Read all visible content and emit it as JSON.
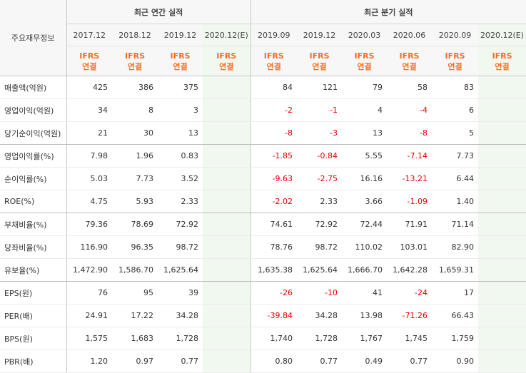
{
  "header": {
    "corner_label": "주요재무정보",
    "annual_group": "최근 연간 실적",
    "quarter_group": "최근 분기 실적",
    "annual_periods": [
      "2017.12",
      "2018.12",
      "2019.12",
      "2020.12(E)"
    ],
    "quarter_periods": [
      "2019.09",
      "2019.12",
      "2020.03",
      "2020.06",
      "2020.09",
      "2020.12(E)"
    ],
    "ifrs_line1": "IFRS",
    "ifrs_line2": "연결"
  },
  "colors": {
    "negative": "#e60000",
    "ifrs": "#ff6a22",
    "estimate_bg": "#f1f8ef"
  },
  "rows": [
    {
      "label": "매출액(억원)",
      "annual": [
        "425",
        "386",
        "375",
        ""
      ],
      "quarter": [
        "84",
        "121",
        "79",
        "58",
        "83",
        ""
      ]
    },
    {
      "label": "영업이익(억원)",
      "annual": [
        "34",
        "8",
        "3",
        ""
      ],
      "quarter": [
        "-2",
        "-1",
        "4",
        "-4",
        "6",
        ""
      ]
    },
    {
      "label": "당기순이익(억원)",
      "annual": [
        "21",
        "30",
        "13",
        ""
      ],
      "quarter": [
        "-8",
        "-3",
        "13",
        "-8",
        "5",
        ""
      ]
    },
    {
      "label": "영업이익률(%)",
      "annual": [
        "7.98",
        "1.96",
        "0.83",
        ""
      ],
      "quarter": [
        "-1.85",
        "-0.84",
        "5.55",
        "-7.14",
        "7.73",
        ""
      ]
    },
    {
      "label": "순이익률(%)",
      "annual": [
        "5.03",
        "7.73",
        "3.52",
        ""
      ],
      "quarter": [
        "-9.63",
        "-2.75",
        "16.16",
        "-13.21",
        "6.44",
        ""
      ]
    },
    {
      "label": "ROE(%)",
      "annual": [
        "4.75",
        "5.93",
        "2.33",
        ""
      ],
      "quarter": [
        "-2.02",
        "2.33",
        "3.66",
        "-1.09",
        "1.40",
        ""
      ]
    },
    {
      "label": "부채비율(%)",
      "annual": [
        "79.36",
        "78.69",
        "72.92",
        ""
      ],
      "quarter": [
        "74.61",
        "72.92",
        "72.44",
        "71.91",
        "71.14",
        ""
      ]
    },
    {
      "label": "당좌비율(%)",
      "annual": [
        "116.90",
        "96.35",
        "98.72",
        ""
      ],
      "quarter": [
        "78.76",
        "98.72",
        "110.02",
        "103.01",
        "82.90",
        ""
      ]
    },
    {
      "label": "유보율(%)",
      "annual": [
        "1,472.90",
        "1,586.70",
        "1,625.64",
        ""
      ],
      "quarter": [
        "1,635.38",
        "1,625.64",
        "1,666.70",
        "1,642.28",
        "1,659.31",
        ""
      ]
    },
    {
      "label": "EPS(원)",
      "annual": [
        "76",
        "95",
        "39",
        ""
      ],
      "quarter": [
        "-26",
        "-10",
        "41",
        "-24",
        "17",
        ""
      ]
    },
    {
      "label": "PER(배)",
      "annual": [
        "24.91",
        "17.22",
        "34.28",
        ""
      ],
      "quarter": [
        "-39.84",
        "34.28",
        "13.98",
        "-71.26",
        "66.43",
        ""
      ]
    },
    {
      "label": "BPS(원)",
      "annual": [
        "1,575",
        "1,683",
        "1,728",
        ""
      ],
      "quarter": [
        "1,740",
        "1,728",
        "1,767",
        "1,745",
        "1,759",
        ""
      ]
    },
    {
      "label": "PBR(배)",
      "annual": [
        "1.20",
        "0.97",
        "0.77",
        ""
      ],
      "quarter": [
        "0.80",
        "0.77",
        "0.49",
        "0.77",
        "0.90",
        ""
      ]
    }
  ]
}
